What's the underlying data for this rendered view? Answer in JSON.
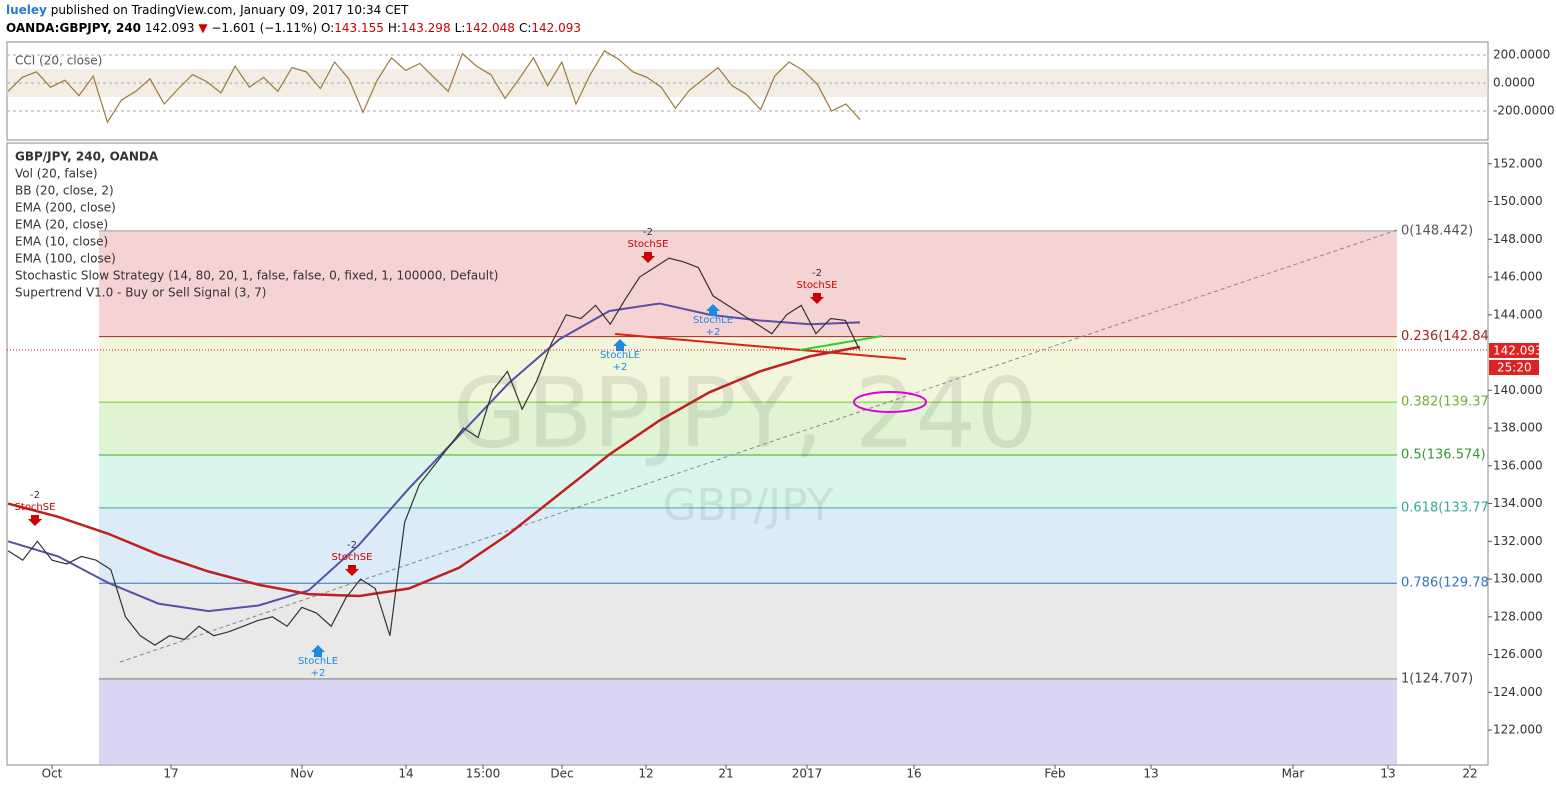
{
  "header": {
    "author": "lueley",
    "published": "published on TradingView.com, January 09, 2017 10:34 CET",
    "symbol": "OANDA:GBPJPY, 240",
    "last": "142.093",
    "change": "−1.601 (−1.11%)",
    "ohlc": [
      {
        "key": "O:",
        "value": "143.155"
      },
      {
        "key": "H:",
        "value": "143.298"
      },
      {
        "key": "L:",
        "value": "142.048"
      },
      {
        "key": "C:",
        "value": "142.093"
      }
    ]
  },
  "cci_pane": {
    "label": "CCI (20, close)",
    "color": "#9c7a3c",
    "ylim": [
      -407,
      293
    ],
    "yticks": [
      {
        "value": 200,
        "label": "200.0000"
      },
      {
        "value": 0,
        "label": "0.0000"
      },
      {
        "value": -200,
        "label": "-200.0000"
      }
    ],
    "values": [
      -60,
      40,
      80,
      -30,
      20,
      -90,
      50,
      -280,
      -120,
      -60,
      30,
      -150,
      -40,
      60,
      10,
      -70,
      120,
      -30,
      40,
      -60,
      110,
      80,
      -40,
      150,
      30,
      -210,
      20,
      180,
      90,
      140,
      40,
      -60,
      210,
      120,
      60,
      -110,
      30,
      180,
      -20,
      150,
      -150,
      60,
      230,
      170,
      80,
      40,
      -30,
      -180,
      -50,
      30,
      110,
      -20,
      -80,
      -190,
      50,
      150,
      90,
      -10,
      -200,
      -150,
      -260
    ]
  },
  "main_pane": {
    "legend": [
      "GBP/JPY, 240, OANDA",
      "Vol (20, false)",
      "BB (20, close, 2)",
      "EMA (200, close)",
      "EMA (20, close)",
      "EMA (10, close)",
      "EMA (100, close)",
      "Stochastic Slow Strategy (14, 80, 20, 1, false, false, 0, fixed, 1, 100000, Default)",
      "Supertrend V1.0 - Buy or Sell Signal (3, 7)"
    ],
    "watermark": "GBPJPY, 240",
    "watermark_sub": "GBP/JPY",
    "ylim": [
      120.15,
      153.1
    ],
    "yticks": [
      {
        "value": 152,
        "label": "152.000"
      },
      {
        "value": 150,
        "label": "150.000"
      },
      {
        "value": 148,
        "label": "148.000"
      },
      {
        "value": 146,
        "label": "146.000"
      },
      {
        "value": 144,
        "label": "144.000"
      },
      {
        "value": 140,
        "label": "140.000"
      },
      {
        "value": 138,
        "label": "138.000"
      },
      {
        "value": 136,
        "label": "136.000"
      },
      {
        "value": 134,
        "label": "134.000"
      },
      {
        "value": 132,
        "label": "132.000"
      },
      {
        "value": 130,
        "label": "130.000"
      },
      {
        "value": 128,
        "label": "128.000"
      },
      {
        "value": 126,
        "label": "126.000"
      },
      {
        "value": 124,
        "label": "124.000"
      },
      {
        "value": 122,
        "label": "122.000"
      }
    ],
    "price": {
      "color": "#333333",
      "values": [
        131.5,
        131,
        132,
        131,
        130.8,
        131.2,
        131,
        130.5,
        128,
        127,
        126.5,
        127,
        126.8,
        127.5,
        127,
        127.2,
        127.5,
        127.8,
        128,
        127.5,
        128.5,
        128.2,
        127.5,
        129,
        130,
        129.5,
        127,
        133,
        135,
        136,
        137,
        138,
        137.5,
        140,
        141,
        139,
        140.5,
        142.5,
        144,
        143.8,
        144.5,
        143.5,
        144.8,
        146,
        146.5,
        147,
        146.8,
        146.5,
        145,
        144.5,
        144,
        143.5,
        143,
        144,
        144.5,
        143,
        143.8,
        143.7,
        142.1
      ]
    },
    "ema200": {
      "color": "#c0201f",
      "values": [
        134,
        133.3,
        132.4,
        131.3,
        130.4,
        129.7,
        129.2,
        129.1,
        129.5,
        130.6,
        132.4,
        134.5,
        136.6,
        138.4,
        139.9,
        141,
        141.8,
        142.3
      ]
    },
    "ema100": {
      "color": "#5b4ea6",
      "values": [
        132,
        131.2,
        129.8,
        128.7,
        128.3,
        128.6,
        129.4,
        131.8,
        134.8,
        137.6,
        140.4,
        142.7,
        144.2,
        144.6,
        144,
        143.7,
        143.5,
        143.6
      ]
    },
    "fib_levels": [
      {
        "value": 148.442,
        "label": "0(148.442)"
      },
      {
        "value": 142.84,
        "label": "0.236(142.84"
      },
      {
        "value": 139.37,
        "label": "0.382(139.37"
      },
      {
        "value": 136.574,
        "label": "0.5(136.574)"
      },
      {
        "value": 133.77,
        "label": "0.618(133.77"
      },
      {
        "value": 129.78,
        "label": "0.786(129.78"
      },
      {
        "value": 124.707,
        "label": "1(124.707)"
      }
    ],
    "annotations": [
      {
        "sign": "-2",
        "label": "StochSE"
      },
      {
        "sign": "-2",
        "label": "StochSE"
      },
      {
        "sign": "+2",
        "label": "StochLE"
      },
      {
        "sign": "-2",
        "label": "StochSE"
      },
      {
        "sign": "+2",
        "label": "StochLE"
      },
      {
        "sign": "+2",
        "label": "StochLE"
      },
      {
        "sign": "-2",
        "label": "StochSE"
      }
    ],
    "price_tag": "142.093",
    "countdown": "25:20"
  },
  "time_axis": [
    "Oct",
    "17",
    "Nov",
    "14",
    "15:00",
    "Dec",
    "12",
    "21",
    "2017",
    "16",
    "Feb",
    "13",
    "Mar",
    "13",
    "22"
  ]
}
